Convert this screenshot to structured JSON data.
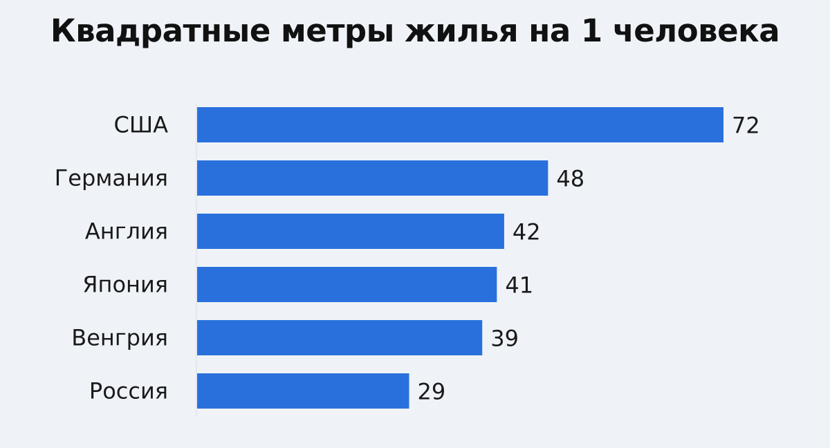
{
  "chart_data": {
    "type": "bar",
    "orientation": "horizontal",
    "title": "Квадратные метры жилья на 1 человека",
    "categories": [
      "США",
      "Германия",
      "Англия",
      "Япония",
      "Венгрия",
      "Россия"
    ],
    "values": [
      72,
      48,
      42,
      41,
      39,
      29
    ],
    "data_labels": [
      "72",
      "48",
      "42",
      "41",
      "39",
      "29"
    ],
    "xlim": [
      0,
      72
    ],
    "grid": false,
    "legend": "none",
    "bar_color": "#2970dc",
    "background_color": "#eff3f8"
  }
}
